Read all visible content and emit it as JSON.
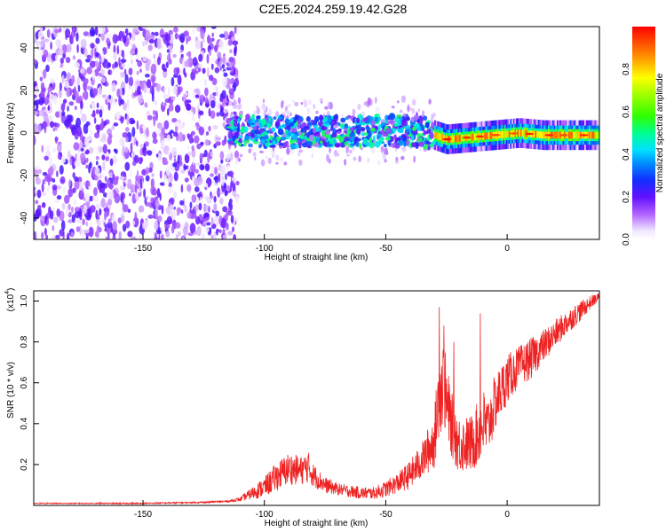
{
  "title": "C2E5.2024.259.19.42.G28",
  "colors": {
    "snr_line": "#ee2222",
    "colormap": [
      "#ffffff",
      "#e8d8ff",
      "#b888ff",
      "#7a1cff",
      "#3a10f0",
      "#1a6cff",
      "#00d8ff",
      "#00ff80",
      "#70ff00",
      "#ffff00",
      "#ff9000",
      "#ff0000"
    ]
  },
  "chart_data": [
    {
      "type": "heatmap",
      "xlabel": "Height of straight line (km)",
      "ylabel": "Frequency (Hz)",
      "xlim": [
        -195,
        38
      ],
      "ylim": [
        -50,
        50
      ],
      "xticks": [
        "-150",
        "-100",
        "-50",
        "0"
      ],
      "yticks": [
        "40",
        "20",
        "0",
        "-20",
        "-40"
      ],
      "colorbar": {
        "label": "Normalized spectral amplitude",
        "range": [
          0,
          1
        ],
        "ticks": [
          "0.0",
          "0.2",
          "0.4",
          "0.6",
          "0.8"
        ]
      },
      "signal_band": {
        "noise_region_x": [
          -195,
          -115
        ],
        "noisy_band_x": [
          -115,
          -30
        ],
        "clean_band_x": [
          -30,
          38
        ],
        "center_freq_points": [
          [
            -115,
            1
          ],
          [
            -90,
            0.5
          ],
          [
            -60,
            1
          ],
          [
            -35,
            1
          ],
          [
            -25,
            -3
          ],
          [
            -15,
            -2
          ],
          [
            -5,
            -1
          ],
          [
            5,
            0
          ],
          [
            15,
            -1
          ],
          [
            25,
            -1
          ],
          [
            38,
            -1
          ]
        ],
        "peak_amplitude_clean": 1.0,
        "peak_amplitude_noisy": 0.45,
        "noise_amplitude": 0.15
      }
    },
    {
      "type": "line",
      "xlabel": "Height of straight line (km)",
      "ylabel": "SNR (10 * v/v)",
      "scale_note": "(x10",
      "scale_exponent": "4",
      "xlim": [
        -195,
        38
      ],
      "ylim": [
        0,
        1.05
      ],
      "xticks": [
        "-150",
        "-100",
        "-50",
        "0"
      ],
      "yticks": [
        "0.2",
        "0.4",
        "0.6",
        "0.8",
        "1.0"
      ],
      "series": [
        {
          "values_x": [
            -195,
            -150,
            -125,
            -115,
            -110,
            -105,
            -100,
            -95,
            -90,
            -85,
            -82,
            -80,
            -75,
            -70,
            -65,
            -60,
            -55,
            -50,
            -45,
            -40,
            -35,
            -30,
            -28,
            -26,
            -25,
            -23,
            -20,
            -15,
            -12,
            -10,
            -8,
            -5,
            0,
            5,
            10,
            15,
            20,
            25,
            30,
            35,
            38
          ],
          "values_y": [
            0.01,
            0.01,
            0.015,
            0.02,
            0.03,
            0.06,
            0.09,
            0.14,
            0.18,
            0.17,
            0.19,
            0.15,
            0.1,
            0.08,
            0.07,
            0.06,
            0.06,
            0.08,
            0.11,
            0.15,
            0.22,
            0.32,
            0.55,
            0.6,
            0.5,
            0.4,
            0.3,
            0.3,
            0.35,
            0.4,
            0.38,
            0.5,
            0.62,
            0.68,
            0.72,
            0.78,
            0.84,
            0.9,
            0.95,
            1.0,
            1.02
          ],
          "noise_amplitude": [
            0.002,
            0.003,
            0.004,
            0.005,
            0.01,
            0.03,
            0.05,
            0.07,
            0.08,
            0.07,
            0.08,
            0.06,
            0.04,
            0.03,
            0.03,
            0.03,
            0.03,
            0.04,
            0.05,
            0.07,
            0.09,
            0.14,
            0.22,
            0.22,
            0.2,
            0.16,
            0.14,
            0.14,
            0.16,
            0.18,
            0.15,
            0.14,
            0.12,
            0.1,
            0.1,
            0.08,
            0.07,
            0.06,
            0.05,
            0.03,
            0.02
          ],
          "spikes": [
            [
              -28,
              0.97
            ],
            [
              -26,
              0.88
            ],
            [
              -22,
              0.8
            ],
            [
              -11,
              0.94
            ],
            [
              -9,
              0.35
            ]
          ]
        }
      ]
    }
  ]
}
